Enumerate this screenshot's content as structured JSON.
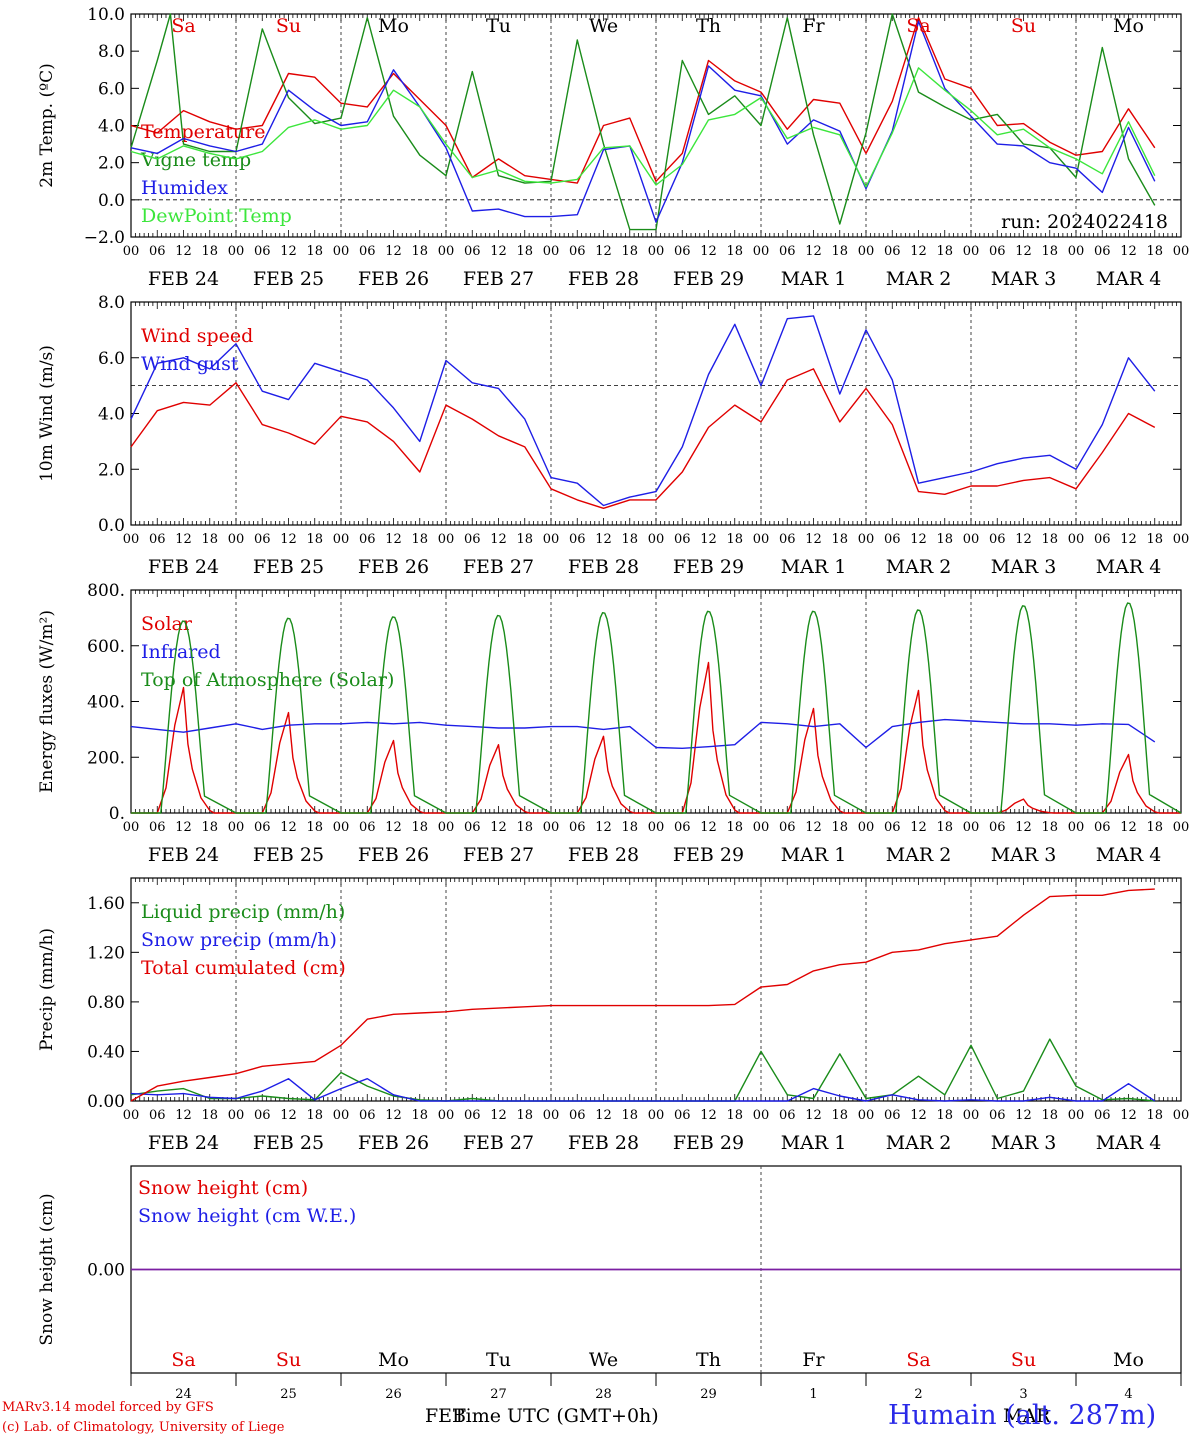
{
  "run_label": "run: 2024022418",
  "x_hours": [
    "00",
    "06",
    "12",
    "18"
  ],
  "x_dates": [
    "FEB 24",
    "FEB 25",
    "FEB 26",
    "FEB 27",
    "FEB 28",
    "FEB 29",
    "MAR  1",
    "MAR  2",
    "MAR  3",
    "MAR  4"
  ],
  "weekdays": [
    {
      "label": "Sa",
      "color": "#e00000"
    },
    {
      "label": "Su",
      "color": "#e00000"
    },
    {
      "label": "Mo",
      "color": "#000000"
    },
    {
      "label": "Tu",
      "color": "#000000"
    },
    {
      "label": "We",
      "color": "#000000"
    },
    {
      "label": "Th",
      "color": "#000000"
    },
    {
      "label": "Fr",
      "color": "#000000"
    },
    {
      "label": "Sa",
      "color": "#e00000"
    },
    {
      "label": "Su",
      "color": "#e00000"
    },
    {
      "label": "Mo",
      "color": "#000000"
    }
  ],
  "bottom_days": [
    "24",
    "25",
    "26",
    "27",
    "28",
    "29",
    "1",
    "2",
    "3",
    "4"
  ],
  "bottom_month_left": "FEB",
  "bottom_month_right": "MAR",
  "x_title": "Time UTC (GMT+0h)",
  "footer_line1": "MARv3.14 model forced by GFS",
  "footer_line2": "(c) Lab. of Climatology, University of Liege",
  "station": "Humain (alt. 287m)",
  "colors": {
    "red": "#e00000",
    "green": "#1a8c1a",
    "blue": "#1e1ee6",
    "lightgreen": "#3ce63c",
    "purple": "#7b1fa2"
  },
  "chart_data": [
    {
      "type": "line",
      "ylabel": "2m Temp. (ºC)",
      "ylim": [
        -2,
        10
      ],
      "yticks": [
        "−2.0",
        "0.0",
        "2.0",
        "4.0",
        "6.0",
        "8.0",
        "10.0"
      ],
      "reference_line": 0,
      "series": [
        {
          "name": "Temperature",
          "color": "#e00000",
          "x": [
            0,
            6,
            12,
            18,
            24,
            30,
            36,
            42,
            48,
            54,
            60,
            66,
            72,
            78,
            84,
            90,
            96,
            102,
            108,
            114,
            120,
            126,
            132,
            138,
            144,
            150,
            156,
            162,
            168,
            174,
            180,
            186,
            192,
            198,
            204,
            210,
            216,
            222,
            228,
            234
          ],
          "values": [
            4.0,
            3.6,
            4.8,
            4.2,
            3.8,
            4.0,
            6.8,
            6.6,
            5.2,
            5.0,
            6.8,
            5.4,
            4.0,
            1.2,
            2.2,
            1.3,
            1.1,
            0.9,
            4.0,
            4.4,
            1.0,
            2.5,
            7.5,
            6.4,
            5.8,
            3.8,
            5.4,
            5.2,
            2.5,
            5.3,
            9.8,
            6.5,
            6.0,
            4.0,
            4.1,
            3.1,
            2.4,
            2.6,
            4.9,
            2.8
          ]
        },
        {
          "name": "Vigne temp",
          "color": "#1a8c1a",
          "x": [
            0,
            6,
            9,
            12,
            18,
            24,
            30,
            36,
            42,
            48,
            54,
            60,
            66,
            72,
            78,
            84,
            90,
            96,
            102,
            108,
            114,
            120,
            126,
            132,
            138,
            144,
            150,
            156,
            162,
            168,
            174,
            180,
            186,
            192,
            198,
            204,
            210,
            216,
            222,
            228,
            234
          ],
          "values": [
            2.8,
            7.5,
            10.0,
            3.0,
            2.6,
            2.6,
            9.2,
            5.5,
            4.1,
            4.4,
            9.8,
            4.5,
            2.4,
            1.3,
            6.9,
            1.3,
            0.9,
            1.0,
            8.6,
            3.0,
            -1.6,
            -1.6,
            7.5,
            4.6,
            5.6,
            4.0,
            9.8,
            3.5,
            -1.3,
            3.6,
            10.0,
            5.8,
            5.0,
            4.3,
            4.6,
            3.0,
            2.8,
            1.2,
            8.2,
            2.2,
            -0.3
          ]
        },
        {
          "name": "Humidex",
          "color": "#1e1ee6",
          "x": [
            0,
            6,
            12,
            18,
            24,
            30,
            36,
            42,
            48,
            54,
            60,
            66,
            72,
            78,
            84,
            90,
            96,
            102,
            108,
            114,
            120,
            126,
            132,
            138,
            144,
            150,
            156,
            162,
            168,
            174,
            180,
            186,
            192,
            198,
            204,
            210,
            216,
            222,
            228,
            234
          ],
          "values": [
            2.8,
            2.5,
            3.3,
            2.9,
            2.6,
            3.0,
            5.9,
            4.8,
            4.0,
            4.2,
            7.0,
            5.0,
            2.8,
            -0.6,
            -0.5,
            -0.9,
            -0.9,
            -0.8,
            2.7,
            2.9,
            -1.2,
            2.0,
            7.2,
            5.9,
            5.6,
            3.0,
            4.3,
            3.7,
            0.6,
            3.7,
            9.6,
            6.0,
            4.5,
            3.0,
            2.9,
            2.0,
            1.7,
            0.4,
            3.9,
            1.0
          ]
        },
        {
          "name": "DewPoint Temp",
          "color": "#3ce63c",
          "x": [
            0,
            6,
            12,
            18,
            24,
            30,
            36,
            42,
            48,
            54,
            60,
            66,
            72,
            78,
            84,
            90,
            96,
            102,
            108,
            114,
            120,
            126,
            132,
            138,
            144,
            150,
            156,
            162,
            168,
            174,
            180,
            186,
            192,
            198,
            204,
            210,
            216,
            222,
            228,
            234
          ],
          "values": [
            2.6,
            2.2,
            2.9,
            2.5,
            2.2,
            2.6,
            3.9,
            4.3,
            3.8,
            4.0,
            5.9,
            5.0,
            3.0,
            1.2,
            1.6,
            1.0,
            0.9,
            1.1,
            2.8,
            2.9,
            0.8,
            1.9,
            4.3,
            4.6,
            5.5,
            3.3,
            3.9,
            3.5,
            0.7,
            3.6,
            7.1,
            5.9,
            4.8,
            3.5,
            3.8,
            2.8,
            2.2,
            1.4,
            4.2,
            1.3
          ]
        }
      ]
    },
    {
      "type": "line",
      "ylabel": "10m Wind (m/s)",
      "ylim": [
        0,
        8
      ],
      "yticks": [
        "0.0",
        "2.0",
        "4.0",
        "6.0",
        "8.0"
      ],
      "reference_line": 5,
      "series": [
        {
          "name": "Wind speed",
          "color": "#e00000",
          "x": [
            0,
            6,
            12,
            18,
            24,
            30,
            36,
            42,
            48,
            54,
            60,
            66,
            72,
            78,
            84,
            90,
            96,
            102,
            108,
            114,
            120,
            126,
            132,
            138,
            144,
            150,
            156,
            162,
            168,
            174,
            180,
            186,
            192,
            198,
            204,
            210,
            216,
            222,
            228,
            234
          ],
          "values": [
            2.8,
            4.1,
            4.4,
            4.3,
            5.1,
            3.6,
            3.3,
            2.9,
            3.9,
            3.7,
            3.0,
            1.9,
            4.3,
            3.8,
            3.2,
            2.8,
            1.3,
            0.9,
            0.6,
            0.9,
            0.9,
            1.9,
            3.5,
            4.3,
            3.7,
            5.2,
            5.6,
            3.7,
            4.9,
            3.6,
            1.2,
            1.1,
            1.4,
            1.4,
            1.6,
            1.7,
            1.3,
            2.6,
            4.0,
            3.5
          ]
        },
        {
          "name": "Wind gust",
          "color": "#1e1ee6",
          "x": [
            0,
            6,
            12,
            18,
            24,
            30,
            36,
            42,
            48,
            54,
            60,
            66,
            72,
            78,
            84,
            90,
            96,
            102,
            108,
            114,
            120,
            126,
            132,
            138,
            144,
            150,
            156,
            162,
            168,
            174,
            180,
            186,
            192,
            198,
            204,
            210,
            216,
            222,
            228,
            234
          ],
          "values": [
            3.8,
            5.8,
            6.0,
            5.6,
            6.5,
            4.8,
            4.5,
            5.8,
            5.5,
            5.2,
            4.2,
            3.0,
            5.9,
            5.1,
            4.9,
            3.8,
            1.7,
            1.5,
            0.7,
            1.0,
            1.2,
            2.8,
            5.4,
            7.2,
            5.0,
            7.4,
            7.5,
            4.7,
            7.0,
            5.2,
            1.5,
            1.7,
            1.9,
            2.2,
            2.4,
            2.5,
            2.0,
            3.6,
            6.0,
            4.8
          ]
        }
      ]
    },
    {
      "type": "line",
      "ylabel": "Energy fluxes (W/m²)",
      "ylim": [
        0,
        800
      ],
      "yticks": [
        "0.",
        "200.",
        "400.",
        "600.",
        "800."
      ],
      "series": [
        {
          "name": "Solar",
          "color": "#e00000",
          "daily_peaks": [
            450,
            360,
            260,
            245,
            275,
            540,
            375,
            440,
            50,
            210
          ]
        },
        {
          "name": "Infrared",
          "color": "#1e1ee6",
          "x": [
            0,
            6,
            12,
            18,
            24,
            30,
            36,
            42,
            48,
            54,
            60,
            66,
            72,
            78,
            84,
            90,
            96,
            102,
            108,
            114,
            120,
            126,
            132,
            138,
            144,
            150,
            156,
            162,
            168,
            174,
            180,
            186,
            192,
            198,
            204,
            210,
            216,
            222,
            228,
            234
          ],
          "values": [
            310,
            300,
            290,
            305,
            320,
            300,
            315,
            320,
            320,
            325,
            320,
            325,
            315,
            310,
            305,
            305,
            310,
            310,
            300,
            310,
            235,
            232,
            238,
            245,
            325,
            320,
            310,
            320,
            235,
            310,
            325,
            335,
            330,
            325,
            320,
            320,
            315,
            320,
            318,
            255
          ]
        },
        {
          "name": "Top of Atmosphere (Solar)",
          "color": "#1a8c1a",
          "daily_peaks": [
            690,
            700,
            705,
            710,
            720,
            725,
            725,
            730,
            745,
            755
          ]
        }
      ]
    },
    {
      "type": "line",
      "ylabel": "Precip (mm/h)",
      "ylim": [
        0,
        1.8
      ],
      "yticks": [
        "0.00",
        "0.40",
        "0.80",
        "1.20",
        "1.60"
      ],
      "series": [
        {
          "name": "Liquid precip (mm/h)",
          "color": "#1a8c1a",
          "x": [
            0,
            6,
            12,
            18,
            24,
            30,
            36,
            42,
            48,
            54,
            60,
            66,
            72,
            78,
            84,
            90,
            96,
            102,
            108,
            114,
            120,
            126,
            132,
            138,
            144,
            150,
            156,
            162,
            168,
            174,
            180,
            186,
            192,
            198,
            204,
            210,
            216,
            222,
            228,
            234
          ],
          "values": [
            0.05,
            0.08,
            0.1,
            0.02,
            0.02,
            0.04,
            0.02,
            0.01,
            0.23,
            0.12,
            0.04,
            0.01,
            0.0,
            0.02,
            0.0,
            0.0,
            0.0,
            0.0,
            0.0,
            0.0,
            0.0,
            0.0,
            0.0,
            0.0,
            0.4,
            0.05,
            0.02,
            0.38,
            0.02,
            0.05,
            0.2,
            0.05,
            0.45,
            0.02,
            0.08,
            0.5,
            0.12,
            0.01,
            0.02,
            0.0
          ]
        },
        {
          "name": "Snow precip (mm/h)",
          "color": "#1e1ee6",
          "x": [
            0,
            6,
            12,
            18,
            24,
            30,
            36,
            42,
            48,
            54,
            60,
            66,
            72,
            78,
            84,
            90,
            96,
            102,
            108,
            114,
            120,
            126,
            132,
            138,
            144,
            150,
            156,
            162,
            168,
            174,
            180,
            186,
            192,
            198,
            204,
            210,
            216,
            222,
            228,
            234
          ],
          "values": [
            0.06,
            0.05,
            0.06,
            0.03,
            0.02,
            0.08,
            0.18,
            0.01,
            0.1,
            0.18,
            0.05,
            0.0,
            0.0,
            0.0,
            0.0,
            0.0,
            0.0,
            0.0,
            0.0,
            0.0,
            0.0,
            0.0,
            0.0,
            0.0,
            0.0,
            0.0,
            0.1,
            0.04,
            0.0,
            0.05,
            0.01,
            0.0,
            0.01,
            0.0,
            0.0,
            0.03,
            0.0,
            0.0,
            0.14,
            0.0
          ]
        },
        {
          "name": "Total cumulated (cm)",
          "color": "#e00000",
          "x": [
            0,
            6,
            12,
            18,
            24,
            30,
            36,
            42,
            48,
            54,
            60,
            66,
            72,
            78,
            84,
            90,
            96,
            102,
            108,
            114,
            120,
            126,
            132,
            138,
            144,
            150,
            156,
            162,
            168,
            174,
            180,
            186,
            192,
            198,
            204,
            210,
            216,
            222,
            228,
            234
          ],
          "values": [
            0.0,
            0.12,
            0.16,
            0.19,
            0.22,
            0.28,
            0.3,
            0.32,
            0.45,
            0.66,
            0.7,
            0.71,
            0.72,
            0.74,
            0.75,
            0.76,
            0.77,
            0.77,
            0.77,
            0.77,
            0.77,
            0.77,
            0.77,
            0.78,
            0.92,
            0.94,
            1.05,
            1.1,
            1.12,
            1.2,
            1.22,
            1.27,
            1.3,
            1.33,
            1.5,
            1.65,
            1.66,
            1.66,
            1.7,
            1.71
          ]
        }
      ]
    },
    {
      "type": "line",
      "ylabel": "Snow height (cm)",
      "ylim": [
        -1,
        1
      ],
      "yticks": [
        "0.00"
      ],
      "series": [
        {
          "name": "Snow height (cm)",
          "color": "#e00000",
          "x": [
            0,
            240
          ],
          "values": [
            0,
            0
          ]
        },
        {
          "name": "Snow height (cm W.E.)",
          "color": "#1e1ee6",
          "x": [
            0,
            240
          ],
          "values": [
            0,
            0
          ]
        }
      ]
    }
  ]
}
